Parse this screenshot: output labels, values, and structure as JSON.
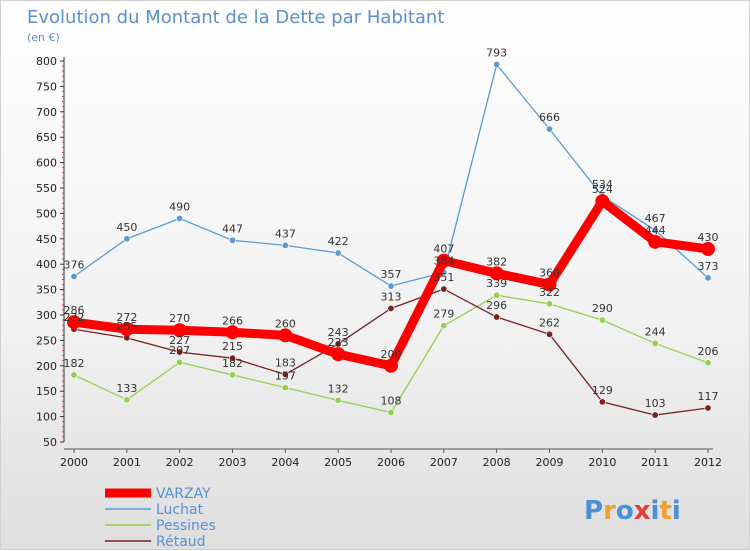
{
  "chart_data": {
    "type": "line",
    "title": "Evolution du Montant de la Dette par Habitant",
    "subtitle": "(en €)",
    "xlabel": "",
    "ylabel": "",
    "ylim": [
      50,
      800
    ],
    "yticks": [
      50,
      100,
      150,
      200,
      250,
      300,
      350,
      400,
      450,
      500,
      550,
      600,
      650,
      700,
      750,
      800
    ],
    "categories": [
      "2000",
      "2001",
      "2002",
      "2003",
      "2004",
      "2005",
      "2006",
      "2007",
      "2008",
      "2009",
      "2010",
      "2011",
      "2012"
    ],
    "grid": false,
    "legend_position": "bottom-left",
    "series": [
      {
        "name": "VARZAY",
        "color": "#ff0000",
        "width": "bold",
        "values": [
          286,
          272,
          270,
          266,
          260,
          223,
          200,
          407,
          382,
          360,
          524,
          444,
          430
        ]
      },
      {
        "name": "Luchat",
        "color": "#5b9bd5",
        "values": [
          376,
          450,
          490,
          447,
          437,
          422,
          357,
          384,
          793,
          666,
          534,
          467,
          373
        ]
      },
      {
        "name": "Pessines",
        "color": "#92d050",
        "values": [
          182,
          133,
          207,
          182,
          157,
          132,
          108,
          279,
          339,
          322,
          290,
          244,
          206
        ]
      },
      {
        "name": "Rétaud",
        "color": "#7b2020",
        "values": [
          272,
          255,
          227,
          215,
          183,
          243,
          313,
          351,
          296,
          262,
          129,
          103,
          117
        ]
      }
    ]
  },
  "brand": {
    "logo_text": "Proxiti"
  }
}
